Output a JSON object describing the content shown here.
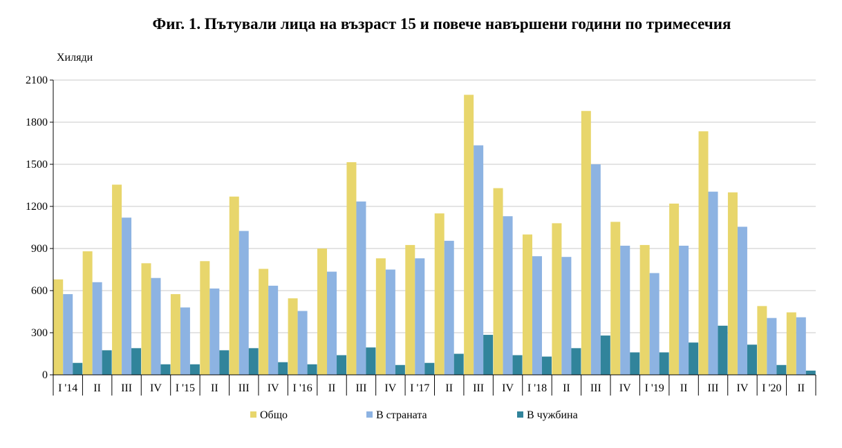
{
  "chart_data": {
    "type": "bar",
    "title": "Фиг. 1. Пътували лица на възраст 15 и повече навършени години по тримесечия",
    "ylabel": "Хиляди",
    "xlabel": "",
    "ylim": [
      0,
      2100
    ],
    "yticks": [
      0,
      300,
      600,
      900,
      1200,
      1500,
      1800,
      2100
    ],
    "grid": true,
    "legend": "bottom",
    "categories": [
      "I '14",
      "II",
      "III",
      "IV",
      "I '15",
      "II",
      "III",
      "IV",
      "I '16",
      "II",
      "III",
      "IV",
      "I '17",
      "II",
      "III",
      "IV",
      "I '18",
      "II",
      "III",
      "IV",
      "I '19",
      "II",
      "III",
      "IV",
      "I '20",
      "II"
    ],
    "series": [
      {
        "name": "Общо",
        "color": "#E8D66C",
        "values": [
          680,
          880,
          1355,
          795,
          575,
          810,
          1270,
          755,
          545,
          900,
          1515,
          830,
          925,
          1150,
          1995,
          1330,
          1000,
          1080,
          1880,
          1090,
          925,
          1220,
          1735,
          1300,
          490,
          445
        ]
      },
      {
        "name": "В страната",
        "color": "#8DB3E2",
        "values": [
          575,
          660,
          1120,
          690,
          480,
          615,
          1025,
          635,
          455,
          735,
          1235,
          750,
          830,
          955,
          1635,
          1130,
          845,
          840,
          1500,
          920,
          725,
          920,
          1305,
          1055,
          405,
          410
        ]
      },
      {
        "name": "В чужбина",
        "color": "#31849B",
        "values": [
          85,
          175,
          190,
          75,
          75,
          175,
          190,
          90,
          75,
          140,
          195,
          70,
          85,
          150,
          285,
          140,
          130,
          190,
          280,
          160,
          160,
          230,
          350,
          215,
          70,
          30
        ]
      }
    ]
  }
}
